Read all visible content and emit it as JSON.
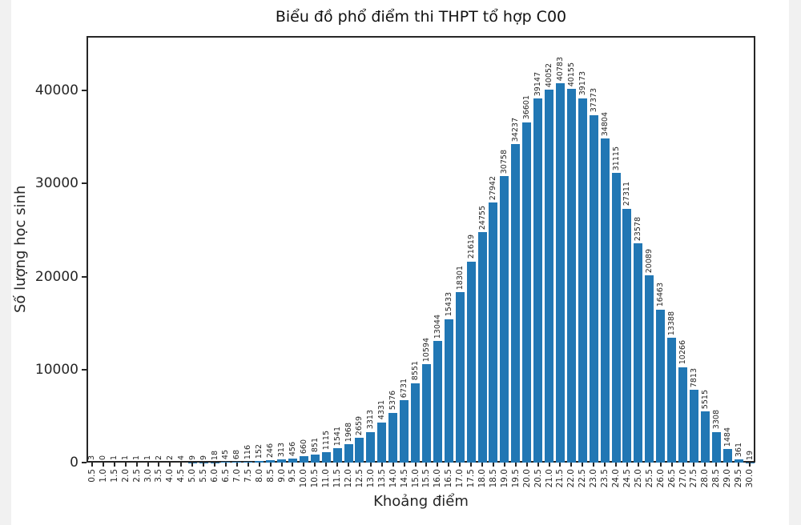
{
  "chart_data": {
    "type": "bar",
    "title": "Biểu đồ phổ điểm thi THPT tổ hợp C00",
    "xlabel": "Khoảng điểm",
    "ylabel": "Số lượng học sinh",
    "categories": [
      "0.5",
      "1.0",
      "1.5",
      "2.0",
      "2.5",
      "3.0",
      "3.5",
      "4.0",
      "4.5",
      "5.0",
      "5.5",
      "6.0",
      "6.5",
      "7.0",
      "7.5",
      "8.0",
      "8.5",
      "9.0",
      "9.5",
      "10.0",
      "10.5",
      "11.0",
      "11.5",
      "12.0",
      "12.5",
      "13.0",
      "13.5",
      "14.0",
      "14.5",
      "15.0",
      "15.5",
      "16.0",
      "16.5",
      "17.0",
      "17.5",
      "18.0",
      "18.5",
      "19.0",
      "19.5",
      "20.0",
      "20.5",
      "21.0",
      "21.5",
      "22.0",
      "22.5",
      "23.0",
      "23.5",
      "24.0",
      "24.5",
      "25.0",
      "25.5",
      "26.0",
      "26.5",
      "27.0",
      "27.5",
      "28.0",
      "28.5",
      "29.0",
      "29.5",
      "30.0"
    ],
    "values": [
      3,
      0,
      1,
      1,
      1,
      1,
      2,
      2,
      4,
      9,
      9,
      18,
      45,
      68,
      116,
      152,
      246,
      313,
      456,
      660,
      851,
      1115,
      1541,
      1968,
      2659,
      3313,
      4331,
      5376,
      6731,
      8551,
      10594,
      13044,
      15433,
      18301,
      21619,
      24755,
      27942,
      30758,
      34237,
      36601,
      39147,
      40052,
      40783,
      40155,
      39173,
      37373,
      34804,
      31115,
      27311,
      23578,
      20089,
      16463,
      13388,
      10266,
      7813,
      5515,
      3308,
      1484,
      361,
      19
    ],
    "bar_value_labels_shown": true,
    "yticks": [
      0,
      10000,
      20000,
      30000,
      40000
    ],
    "ylim": [
      0,
      45850
    ],
    "bar_color": "#2177b4",
    "grid": false,
    "tick_label_rotation": 90,
    "legend_position": "none"
  }
}
